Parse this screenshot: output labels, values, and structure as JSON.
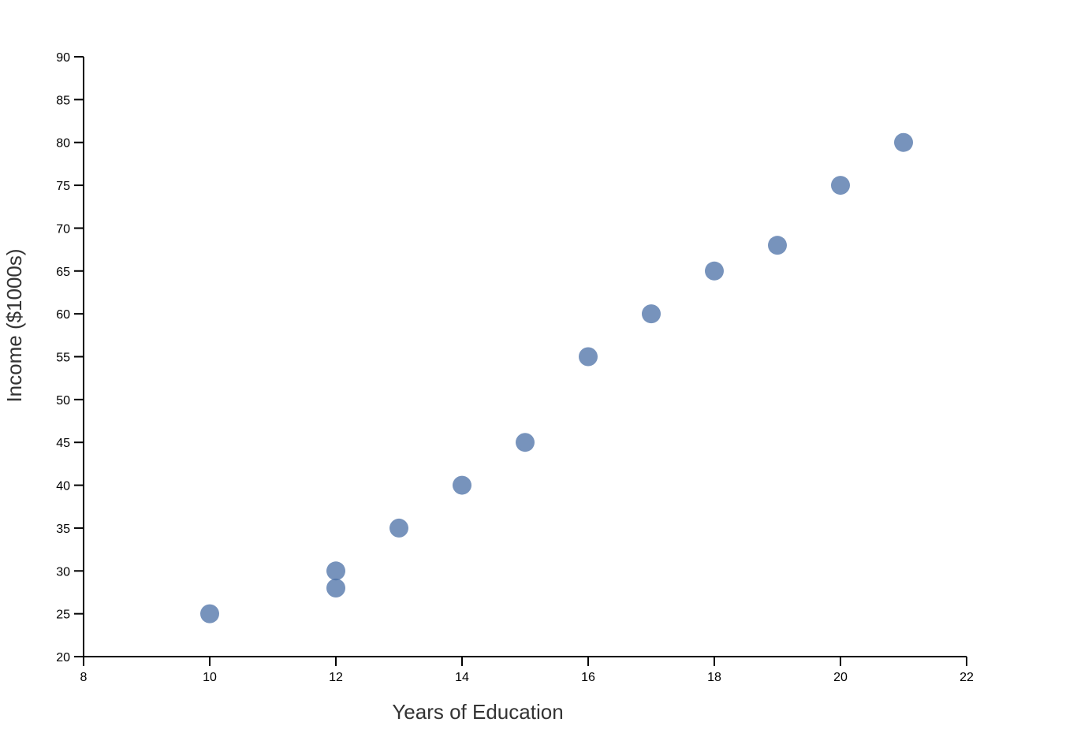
{
  "chart_data": {
    "type": "scatter",
    "title": "",
    "xlabel": "Years of Education",
    "ylabel": "Income ($1000s)",
    "xlim": [
      8,
      22
    ],
    "ylim": [
      20,
      90
    ],
    "x_ticks": [
      8,
      10,
      12,
      14,
      16,
      18,
      20,
      22
    ],
    "y_ticks": [
      20,
      25,
      30,
      35,
      40,
      45,
      50,
      55,
      60,
      65,
      70,
      75,
      80,
      85,
      90
    ],
    "grid": false,
    "legend": null,
    "point_color": "#4a6fa5",
    "point_opacity": 0.75,
    "points": [
      {
        "x": 10,
        "y": 25
      },
      {
        "x": 12,
        "y": 28
      },
      {
        "x": 12,
        "y": 30
      },
      {
        "x": 13,
        "y": 35
      },
      {
        "x": 14,
        "y": 40
      },
      {
        "x": 15,
        "y": 45
      },
      {
        "x": 16,
        "y": 55
      },
      {
        "x": 17,
        "y": 60
      },
      {
        "x": 18,
        "y": 65
      },
      {
        "x": 19,
        "y": 68
      },
      {
        "x": 20,
        "y": 75
      },
      {
        "x": 21,
        "y": 80
      }
    ]
  }
}
